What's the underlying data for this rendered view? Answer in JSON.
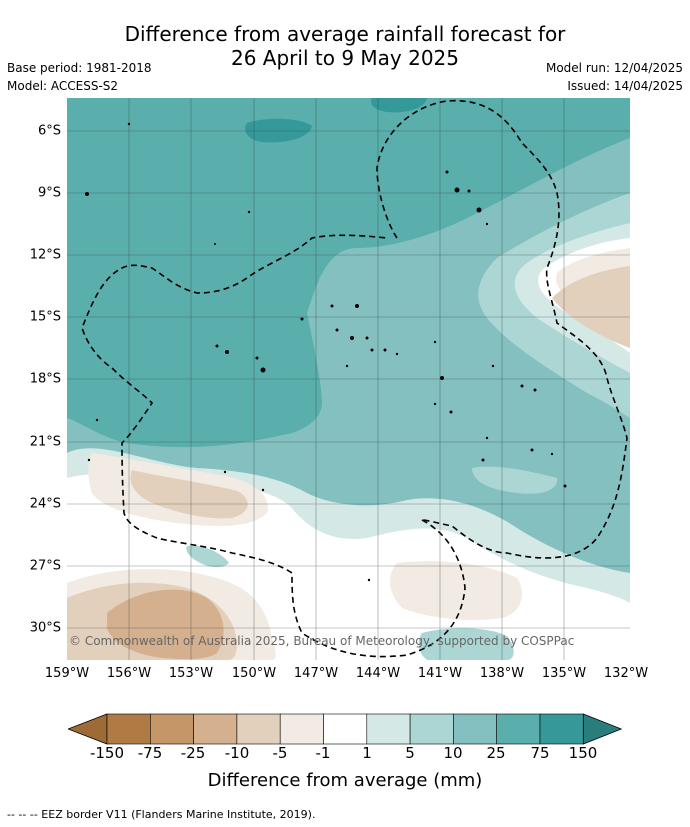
{
  "title": {
    "line1": "Difference from average rainfall forecast for",
    "line2": "26 April to 9 May 2025"
  },
  "meta": {
    "base_period": "Base period: 1981-2018",
    "model": "Model: ACCESS-S2",
    "model_run": "Model run: 12/04/2025",
    "issued": "Issued: 14/04/2025"
  },
  "map": {
    "lat_labels": [
      "6°S",
      "9°S",
      "12°S",
      "15°S",
      "18°S",
      "21°S",
      "24°S",
      "27°S",
      "30°S"
    ],
    "lon_labels": [
      "159°W",
      "156°W",
      "153°W",
      "150°W",
      "147°W",
      "144°W",
      "141°W",
      "138°W",
      "135°W",
      "132°W"
    ],
    "copyright": "© Commonwealth of Australia 2025, Bureau of Meteorology, supported by COSPPac"
  },
  "legend": {
    "ticks": [
      "-150",
      "-75",
      "-25",
      "-10",
      "-5",
      "-1",
      "1",
      "5",
      "10",
      "25",
      "75",
      "150"
    ],
    "colors": [
      "#9e6a36",
      "#b07a44",
      "#c49668",
      "#d4b08e",
      "#e3d0bc",
      "#f1ebe3",
      "#ffffff",
      "#d4e8e6",
      "#acd6d4",
      "#83c0bf",
      "#5aaeac",
      "#35999a",
      "#2a7d7d"
    ],
    "title": "Difference from average (mm)"
  },
  "footnote": "-- -- -- EEZ border V11 (Flanders Marine Institute, 2019)."
}
